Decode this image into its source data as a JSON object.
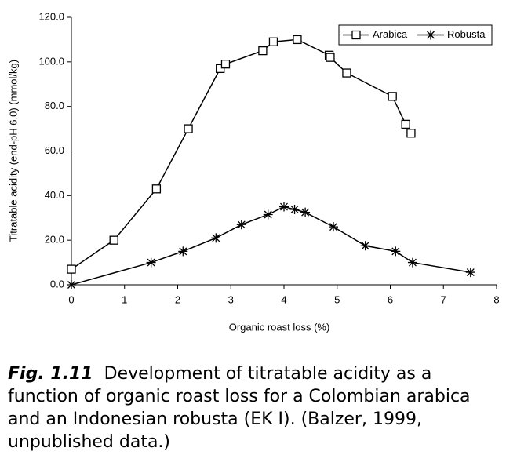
{
  "chart_data": {
    "type": "line",
    "x_label": "Organic roast loss (%)",
    "y_label": "Titratable acidity (end-pH 6.0) (mmol/kg)",
    "xlim": [
      0,
      8
    ],
    "xticks": [
      0,
      1,
      2,
      3,
      4,
      5,
      6,
      7,
      8
    ],
    "ylim": [
      0,
      120
    ],
    "yticks": [
      {
        "value": 0,
        "label": "0.0"
      },
      {
        "value": 20,
        "label": "20.0"
      },
      {
        "value": 40,
        "label": "40.0"
      },
      {
        "value": 60,
        "label": "60.0"
      },
      {
        "value": 80,
        "label": "80.0"
      },
      {
        "value": 100,
        "label": "100.0"
      },
      {
        "value": 120,
        "label": "120.0"
      }
    ],
    "legend": "top-right",
    "series": [
      {
        "name": "Arabica",
        "color": "#000000",
        "marker": "square",
        "x": [
          0,
          0.8,
          1.6,
          2.2,
          2.8,
          2.9,
          3.6,
          3.8,
          4.25,
          4.85,
          4.87,
          5.18,
          6.04,
          6.29,
          6.39
        ],
        "values": [
          7,
          20,
          43,
          70,
          97,
          99,
          105,
          109,
          110,
          103,
          102,
          95,
          84.5,
          72,
          68
        ]
      },
      {
        "name": "Robusta",
        "color": "#000000",
        "marker": "asterisk",
        "x": [
          0,
          1.5,
          2.1,
          2.72,
          3.2,
          3.7,
          4.0,
          4.2,
          4.4,
          4.93,
          5.53,
          6.1,
          6.42,
          7.51
        ],
        "values": [
          0,
          10,
          15,
          21,
          27,
          31.5,
          35,
          33.8,
          32.5,
          26,
          17.5,
          15,
          10,
          5.6
        ]
      }
    ]
  },
  "caption": {
    "label": "Fig. 1.11",
    "text": "Development of titratable acidity as a function of organic roast loss for a Colombian arabica and an Indonesian robusta (EK I). (Balzer, 1999, unpublished data.)"
  }
}
